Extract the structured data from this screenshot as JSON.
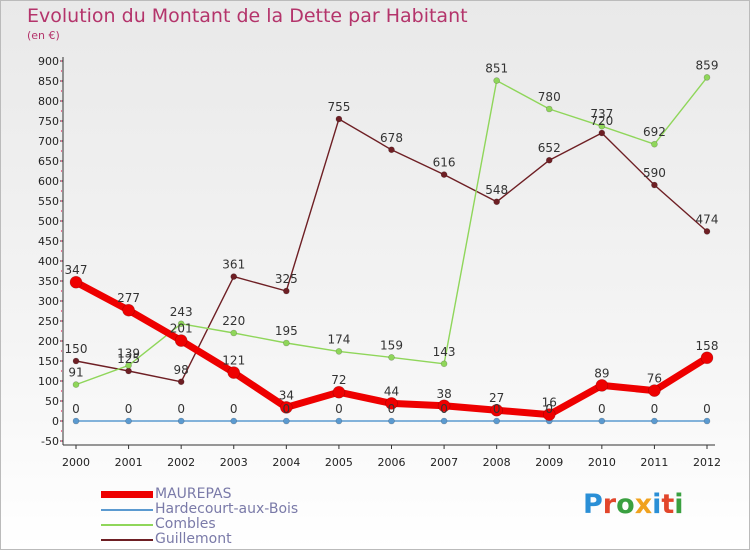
{
  "title": "Evolution du Montant de la Dette par Habitant",
  "subtitle": "(en €)",
  "logo": {
    "letters": [
      "P",
      "r",
      "o",
      "x",
      "i",
      "t",
      "i"
    ],
    "colors": [
      "#2a8fd6",
      "#e2462b",
      "#3aa040",
      "#f0a21e",
      "#2a8fd6",
      "#e2462b",
      "#3aa040"
    ]
  },
  "chart_data": {
    "type": "line",
    "x": [
      "2000",
      "2001",
      "2002",
      "2003",
      "2004",
      "2005",
      "2006",
      "2007",
      "2008",
      "2009",
      "2010",
      "2011",
      "2012"
    ],
    "ylim": [
      -50,
      900
    ],
    "yticks": [
      -50,
      0,
      50,
      100,
      150,
      200,
      250,
      300,
      350,
      400,
      450,
      500,
      550,
      600,
      650,
      700,
      750,
      800,
      850,
      900
    ],
    "grid": false,
    "legend_position": "bottom-left",
    "series": [
      {
        "name": "Guillemont",
        "color": "#6e1f24",
        "values": [
          150,
          125,
          98,
          361,
          325,
          755,
          678,
          616,
          548,
          652,
          720,
          590,
          474
        ]
      },
      {
        "name": "Combles",
        "color": "#8fd65a",
        "values": [
          91,
          139,
          243,
          220,
          195,
          174,
          159,
          143,
          851,
          780,
          737,
          692,
          859
        ]
      },
      {
        "name": "Hardecourt-aux-Bois",
        "color": "#5b9ad0",
        "values": [
          0,
          0,
          0,
          0,
          0,
          0,
          0,
          0,
          0,
          0,
          0,
          0,
          0
        ]
      },
      {
        "name": "MAUREPAS",
        "color": "#ee0000",
        "values": [
          347,
          277,
          201,
          121,
          34,
          72,
          44,
          38,
          27,
          16,
          89,
          76,
          158
        ]
      }
    ]
  },
  "legend": [
    {
      "name": "MAUREPAS",
      "color": "#ee0000"
    },
    {
      "name": "Hardecourt-aux-Bois",
      "color": "#5b9ad0"
    },
    {
      "name": "Combles",
      "color": "#8fd65a"
    },
    {
      "name": "Guillemont",
      "color": "#6e1f24"
    }
  ]
}
